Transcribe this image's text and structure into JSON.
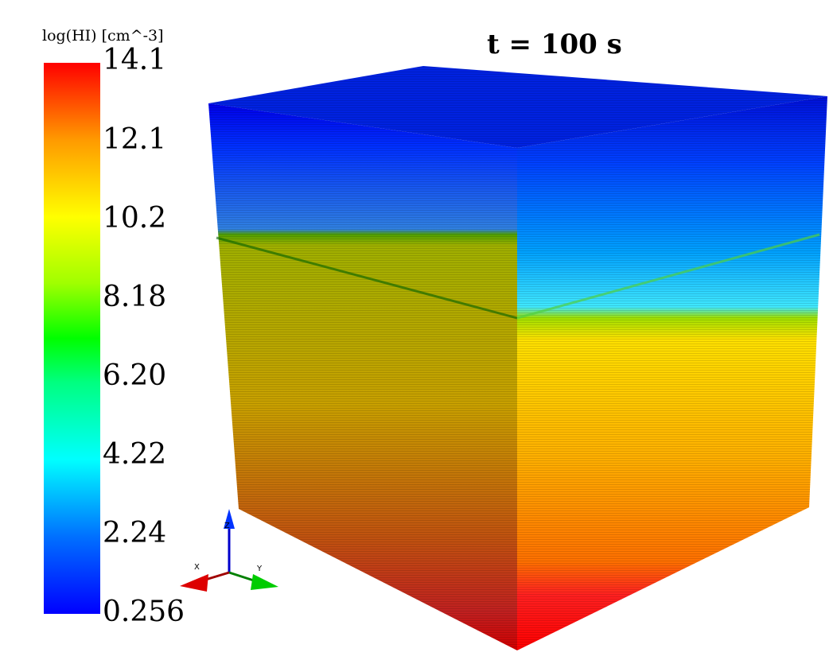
{
  "legend": {
    "title": "log(HI) [cm^-3]",
    "ticks": [
      "14.1",
      "12.1",
      "10.2",
      "8.18",
      "6.20",
      "4.22",
      "2.24",
      "0.256"
    ],
    "max": 14.1,
    "min": 0.256,
    "colormap": [
      "#0000ff",
      "#0080ff",
      "#00ffff",
      "#00ff80",
      "#00ff00",
      "#80ff00",
      "#ffff00",
      "#ffd000",
      "#ff8000",
      "#ff0000"
    ]
  },
  "time_label": "t = 100 s",
  "axes_triad": {
    "x": "X",
    "y": "Y",
    "z": "Z"
  },
  "cube": {
    "top_color": "#0010d0",
    "transition_level": 10.2,
    "colors": {
      "top_band": "#0000ff",
      "cyan_band": "#40e0ff",
      "yellow_band": "#ffd800",
      "orange_band": "#ff8000",
      "bottom_band": "#ff1010"
    }
  }
}
